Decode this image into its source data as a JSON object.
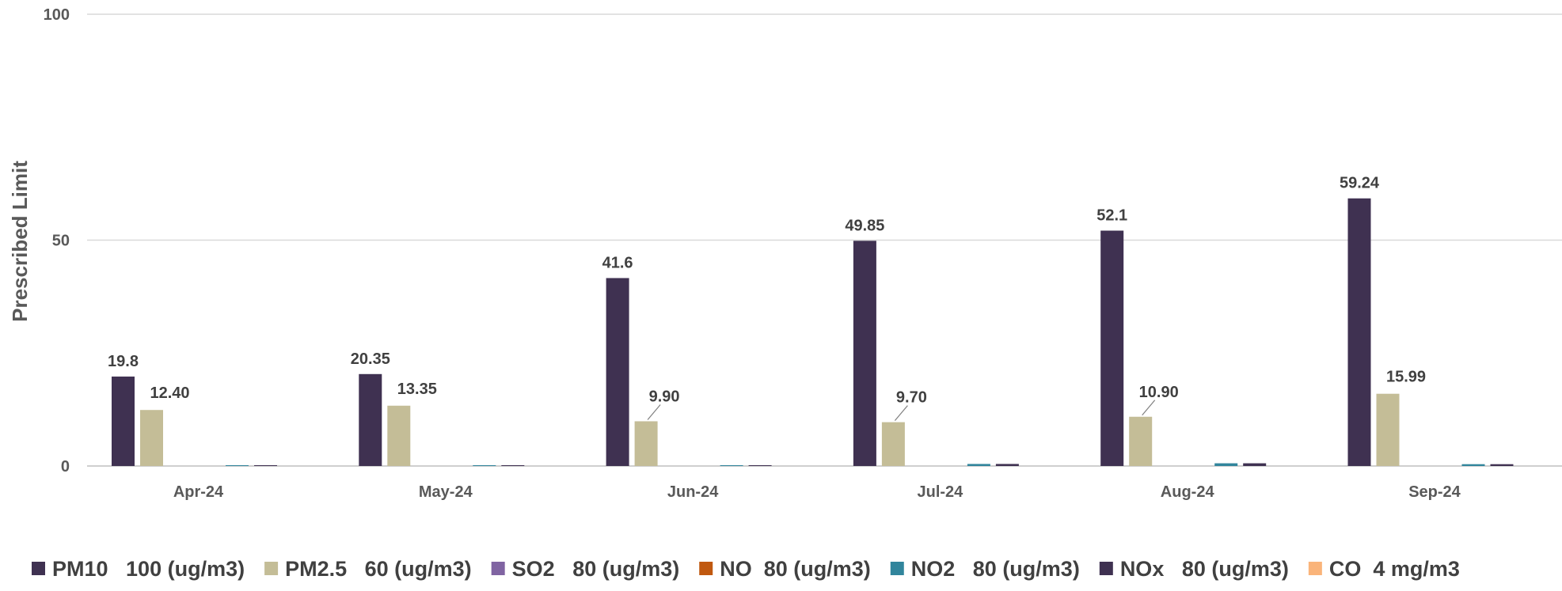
{
  "chart_data": {
    "type": "bar",
    "ylabel": "Prescribed Limit",
    "xlabel": "",
    "ylim": [
      0,
      100
    ],
    "yticks": [
      0,
      50,
      100
    ],
    "grid": true,
    "legend_position": "bottom",
    "categories": [
      "Apr-24",
      "May-24",
      "Jun-24",
      "Jul-24",
      "Aug-24",
      "Sep-24"
    ],
    "series": [
      {
        "name": "PM10   100 (ug/m3)",
        "color": "#3f3151",
        "values": [
          19.8,
          20.35,
          41.6,
          49.85,
          52.1,
          59.24
        ],
        "labels": [
          "19.8",
          "20.35",
          "41.6",
          "49.85",
          "52.1",
          "59.24"
        ]
      },
      {
        "name": "PM2.5   60 (ug/m3)",
        "color": "#c4bd97",
        "values": [
          12.4,
          13.35,
          9.9,
          9.7,
          10.9,
          15.99
        ],
        "labels": [
          "12.40",
          "13.35",
          "9.90",
          "9.70",
          "10.90",
          "15.99"
        ]
      },
      {
        "name": "SO2   80 (ug/m3)",
        "color": "#8064a2",
        "values": [
          0,
          0,
          0,
          0,
          0,
          0
        ]
      },
      {
        "name": "NO  80 (ug/m3)",
        "color": "#c0580f",
        "values": [
          0,
          0,
          0,
          0,
          0,
          0
        ]
      },
      {
        "name": "NO2   80 (ug/m3)",
        "color": "#31859c",
        "values": [
          0.1,
          0.1,
          0.1,
          0.45,
          0.6,
          0.4
        ]
      },
      {
        "name": "NOx   80 (ug/m3)",
        "color": "#3f3151",
        "values": [
          0.1,
          0.1,
          0.1,
          0.45,
          0.6,
          0.4
        ]
      },
      {
        "name": "CO  4 mg/m3",
        "color": "#fab47a",
        "values": [
          0,
          0,
          0,
          0,
          0,
          0
        ]
      }
    ]
  }
}
